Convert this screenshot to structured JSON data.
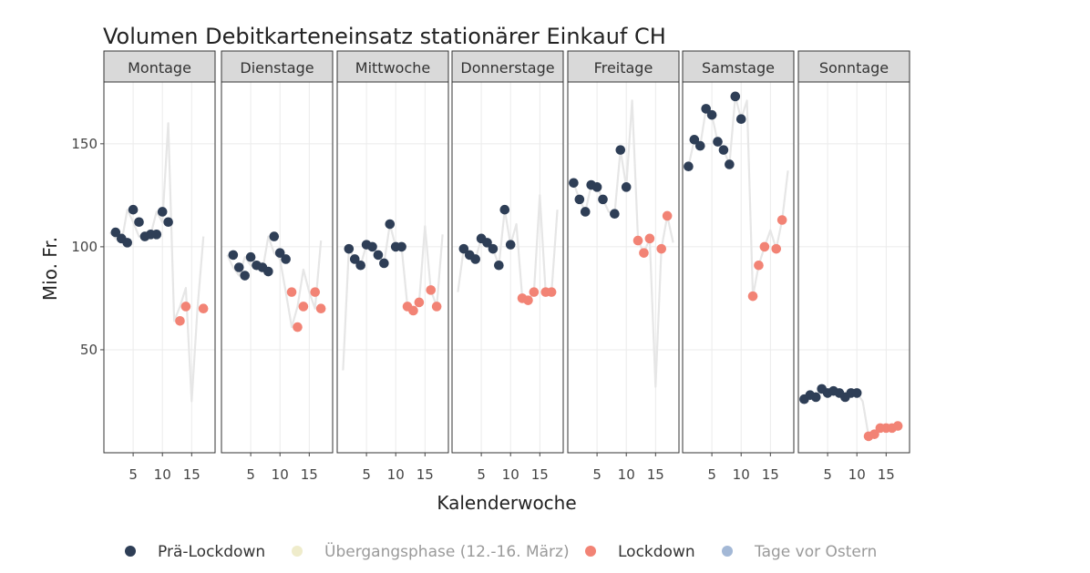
{
  "chart_data": {
    "type": "scatter",
    "title": "Volumen Debitkarteneinsatz stationärer Einkauf CH",
    "xlabel": "Kalenderwoche",
    "ylabel": "Mio. Fr.",
    "xlim": [
      0,
      19
    ],
    "ylim": [
      0,
      180
    ],
    "x_ticks": [
      5,
      10,
      15
    ],
    "y_ticks": [
      50,
      100,
      150
    ],
    "grid": true,
    "legend_position": "bottom",
    "legend": [
      {
        "key": "pre",
        "label": "Prä-Lockdown",
        "color": "#2e3e56",
        "muted": false
      },
      {
        "key": "transition",
        "label": "Übergangsphase (12.-16. März)",
        "color": "#efeccb",
        "muted": true
      },
      {
        "key": "lockdown",
        "label": "Lockdown",
        "color": "#f28375",
        "muted": false
      },
      {
        "key": "easter",
        "label": "Tage vor Ostern",
        "color": "#a3b8d6",
        "muted": true
      }
    ],
    "colors": {
      "pre": "#2e3e56",
      "lockdown": "#f28375",
      "line": "#e6e6e6"
    },
    "panels": [
      {
        "label": "Montage",
        "line": [
          [
            1,
            107
          ],
          [
            2,
            104
          ],
          [
            3,
            102
          ],
          [
            4,
            118
          ],
          [
            5,
            112
          ],
          [
            6,
            105
          ],
          [
            7,
            106
          ],
          [
            8,
            106
          ],
          [
            9,
            117
          ],
          [
            10,
            112
          ],
          [
            11,
            160
          ],
          [
            12,
            64
          ],
          [
            13,
            71
          ],
          [
            14,
            80
          ],
          [
            15,
            25
          ],
          [
            16,
            70
          ],
          [
            17,
            105
          ]
        ],
        "pre": [
          [
            2,
            107
          ],
          [
            3,
            104
          ],
          [
            4,
            102
          ],
          [
            5,
            118
          ],
          [
            6,
            112
          ],
          [
            7,
            105
          ],
          [
            8,
            106
          ],
          [
            9,
            106
          ],
          [
            10,
            117
          ],
          [
            11,
            112
          ]
        ],
        "lockdown": [
          [
            13,
            64
          ],
          [
            14,
            71
          ],
          [
            17,
            70
          ]
        ]
      },
      {
        "label": "Dienstage",
        "line": [
          [
            1,
            96
          ],
          [
            2,
            90
          ],
          [
            3,
            86
          ],
          [
            4,
            95
          ],
          [
            5,
            91
          ],
          [
            6,
            90
          ],
          [
            7,
            88
          ],
          [
            8,
            105
          ],
          [
            9,
            97
          ],
          [
            10,
            94
          ],
          [
            11,
            78
          ],
          [
            12,
            61
          ],
          [
            13,
            71
          ],
          [
            14,
            89
          ],
          [
            15,
            78
          ],
          [
            16,
            70
          ],
          [
            17,
            103
          ]
        ],
        "pre": [
          [
            2,
            96
          ],
          [
            3,
            90
          ],
          [
            4,
            86
          ],
          [
            5,
            95
          ],
          [
            6,
            91
          ],
          [
            7,
            90
          ],
          [
            8,
            88
          ],
          [
            9,
            105
          ],
          [
            10,
            97
          ],
          [
            11,
            94
          ]
        ],
        "lockdown": [
          [
            12,
            78
          ],
          [
            13,
            61
          ],
          [
            14,
            71
          ],
          [
            16,
            78
          ],
          [
            17,
            70
          ]
        ]
      },
      {
        "label": "Mittwoche",
        "line": [
          [
            1,
            40
          ],
          [
            2,
            99
          ],
          [
            3,
            94
          ],
          [
            4,
            91
          ],
          [
            5,
            101
          ],
          [
            6,
            100
          ],
          [
            7,
            96
          ],
          [
            8,
            92
          ],
          [
            9,
            111
          ],
          [
            10,
            100
          ],
          [
            11,
            100
          ],
          [
            12,
            71
          ],
          [
            13,
            69
          ],
          [
            14,
            73
          ],
          [
            15,
            110
          ],
          [
            16,
            79
          ],
          [
            17,
            71
          ],
          [
            18,
            106
          ]
        ],
        "pre": [
          [
            2,
            99
          ],
          [
            3,
            94
          ],
          [
            4,
            91
          ],
          [
            5,
            101
          ],
          [
            6,
            100
          ],
          [
            7,
            96
          ],
          [
            8,
            92
          ],
          [
            9,
            111
          ],
          [
            10,
            100
          ],
          [
            11,
            100
          ]
        ],
        "lockdown": [
          [
            12,
            71
          ],
          [
            13,
            69
          ],
          [
            14,
            73
          ],
          [
            16,
            79
          ],
          [
            17,
            71
          ]
        ]
      },
      {
        "label": "Donnerstage",
        "line": [
          [
            1,
            78
          ],
          [
            2,
            99
          ],
          [
            3,
            96
          ],
          [
            4,
            94
          ],
          [
            5,
            104
          ],
          [
            6,
            102
          ],
          [
            7,
            99
          ],
          [
            8,
            91
          ],
          [
            9,
            118
          ],
          [
            10,
            101
          ],
          [
            11,
            111
          ],
          [
            12,
            75
          ],
          [
            13,
            74
          ],
          [
            14,
            78
          ],
          [
            15,
            125
          ],
          [
            16,
            78
          ],
          [
            17,
            78
          ],
          [
            18,
            118
          ]
        ],
        "pre": [
          [
            2,
            99
          ],
          [
            3,
            96
          ],
          [
            4,
            94
          ],
          [
            5,
            104
          ],
          [
            6,
            102
          ],
          [
            7,
            99
          ],
          [
            8,
            91
          ],
          [
            9,
            118
          ],
          [
            10,
            101
          ]
        ],
        "lockdown": [
          [
            12,
            75
          ],
          [
            13,
            74
          ],
          [
            14,
            78
          ],
          [
            16,
            78
          ],
          [
            17,
            78
          ]
        ]
      },
      {
        "label": "Freitage",
        "line": [
          [
            1,
            131
          ],
          [
            2,
            123
          ],
          [
            3,
            117
          ],
          [
            4,
            130
          ],
          [
            5,
            129
          ],
          [
            6,
            123
          ],
          [
            7,
            117
          ],
          [
            8,
            116
          ],
          [
            9,
            147
          ],
          [
            10,
            129
          ],
          [
            11,
            171
          ],
          [
            12,
            103
          ],
          [
            13,
            97
          ],
          [
            14,
            104
          ],
          [
            15,
            32
          ],
          [
            16,
            99
          ],
          [
            17,
            115
          ],
          [
            18,
            102
          ]
        ],
        "pre": [
          [
            1,
            131
          ],
          [
            2,
            123
          ],
          [
            3,
            117
          ],
          [
            4,
            130
          ],
          [
            5,
            129
          ],
          [
            6,
            123
          ],
          [
            8,
            116
          ],
          [
            9,
            147
          ],
          [
            10,
            129
          ]
        ],
        "lockdown": [
          [
            12,
            103
          ],
          [
            13,
            97
          ],
          [
            14,
            104
          ],
          [
            16,
            99
          ],
          [
            17,
            115
          ]
        ]
      },
      {
        "label": "Samstage",
        "line": [
          [
            1,
            139
          ],
          [
            2,
            152
          ],
          [
            3,
            149
          ],
          [
            4,
            167
          ],
          [
            5,
            164
          ],
          [
            6,
            151
          ],
          [
            7,
            147
          ],
          [
            8,
            140
          ],
          [
            9,
            173
          ],
          [
            10,
            162
          ],
          [
            11,
            171
          ],
          [
            12,
            76
          ],
          [
            13,
            91
          ],
          [
            14,
            100
          ],
          [
            15,
            108
          ],
          [
            16,
            99
          ],
          [
            17,
            113
          ],
          [
            18,
            137
          ]
        ],
        "pre": [
          [
            1,
            139
          ],
          [
            2,
            152
          ],
          [
            3,
            149
          ],
          [
            4,
            167
          ],
          [
            5,
            164
          ],
          [
            6,
            151
          ],
          [
            7,
            147
          ],
          [
            8,
            140
          ],
          [
            9,
            173
          ],
          [
            10,
            162
          ]
        ],
        "lockdown": [
          [
            12,
            76
          ],
          [
            13,
            91
          ],
          [
            14,
            100
          ],
          [
            16,
            99
          ],
          [
            17,
            113
          ]
        ]
      },
      {
        "label": "Sonntage",
        "line": [
          [
            1,
            26
          ],
          [
            2,
            28
          ],
          [
            3,
            27
          ],
          [
            4,
            31
          ],
          [
            5,
            29
          ],
          [
            6,
            30
          ],
          [
            7,
            29
          ],
          [
            8,
            27
          ],
          [
            9,
            29
          ],
          [
            10,
            29
          ],
          [
            11,
            25
          ],
          [
            12,
            8
          ],
          [
            13,
            9
          ],
          [
            14,
            12
          ],
          [
            15,
            12
          ],
          [
            16,
            12
          ],
          [
            17,
            13
          ]
        ],
        "pre": [
          [
            1,
            26
          ],
          [
            2,
            28
          ],
          [
            3,
            27
          ],
          [
            4,
            31
          ],
          [
            5,
            29
          ],
          [
            6,
            30
          ],
          [
            7,
            29
          ],
          [
            8,
            27
          ],
          [
            9,
            29
          ],
          [
            10,
            29
          ]
        ],
        "lockdown": [
          [
            12,
            8
          ],
          [
            13,
            9
          ],
          [
            14,
            12
          ],
          [
            15,
            12
          ],
          [
            16,
            12
          ],
          [
            17,
            13
          ]
        ]
      }
    ]
  }
}
